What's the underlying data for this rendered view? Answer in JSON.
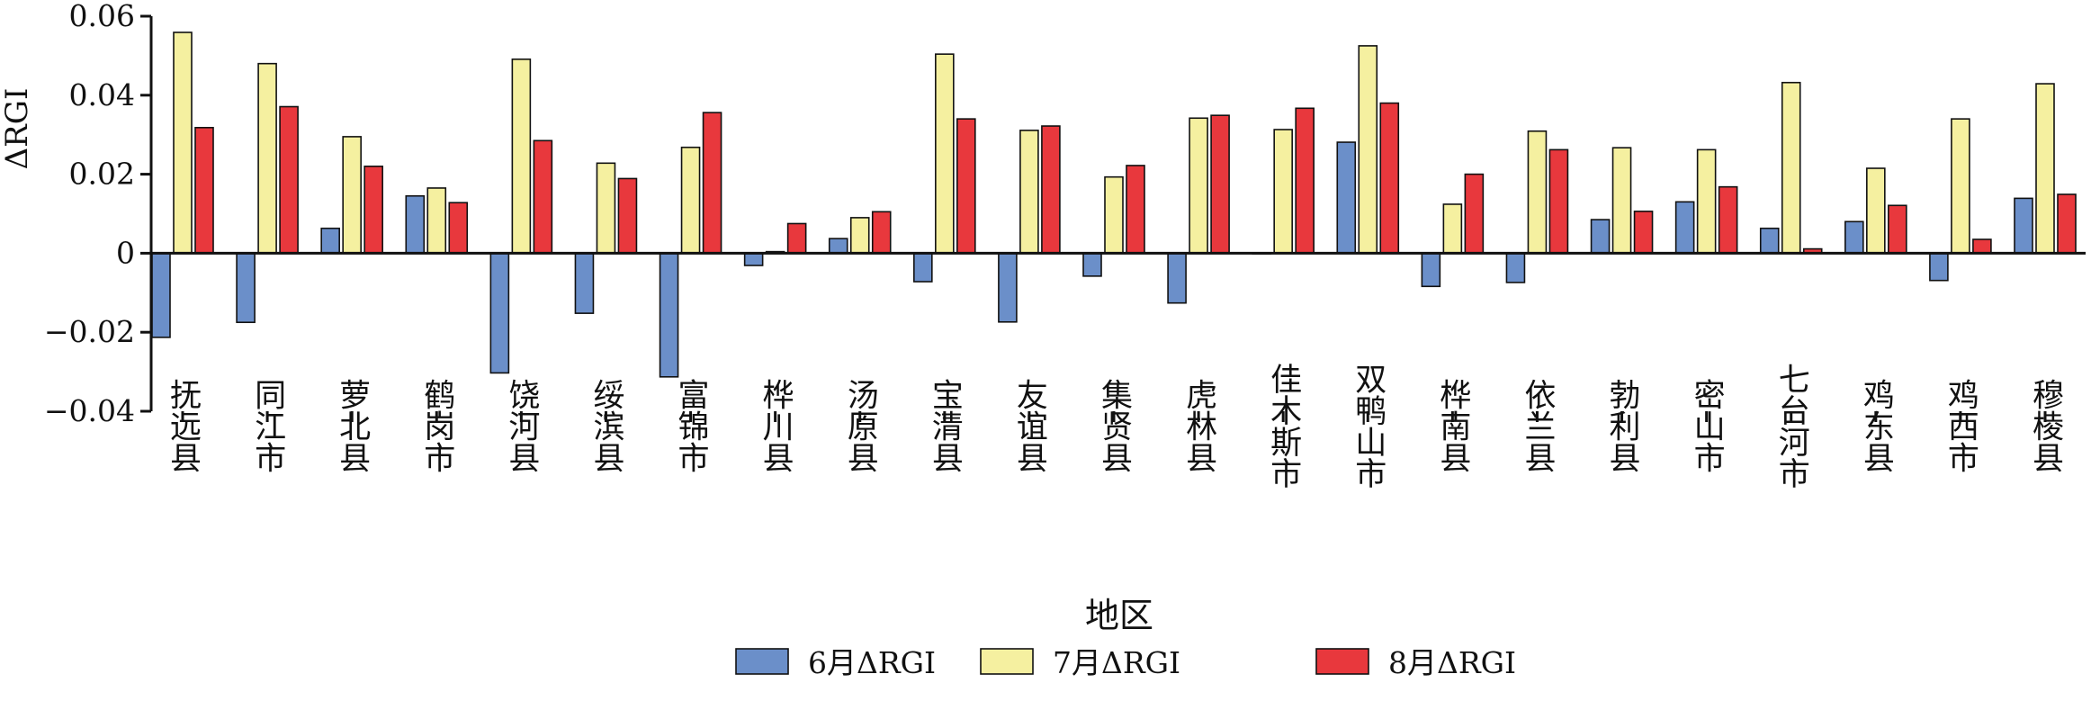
{
  "chart_data": {
    "type": "bar",
    "xlabel": "地区",
    "ylabel": "ΔRGI",
    "ylim": [
      -0.04,
      0.06
    ],
    "yticks": [
      -0.04,
      -0.02,
      0,
      0.02,
      0.04,
      0.06
    ],
    "ytick_labels": [
      "−0.04",
      "−0.02",
      "0",
      "0.02",
      "0.04",
      "0.06"
    ],
    "legend_position": "bottom",
    "categories": [
      "抚远县",
      "同江市",
      "萝北县",
      "鹤岗市",
      "饶河县",
      "绥滨县",
      "富锦市",
      "桦川县",
      "汤原县",
      "宝清县",
      "友谊县",
      "集贤县",
      "虎林县",
      "佳木斯市",
      "双鸭山市",
      "桦南县",
      "依兰县",
      "勃利县",
      "密山市",
      "七台河市",
      "鸡东县",
      "鸡西市",
      "穆棱县"
    ],
    "series": [
      {
        "name": "6月ΔRGI",
        "color": "#6b8fc9",
        "values": [
          -0.0213,
          -0.0175,
          0.0063,
          0.0145,
          -0.0303,
          -0.0152,
          -0.0313,
          -0.0031,
          0.0037,
          -0.0072,
          -0.0174,
          -0.0058,
          -0.0126,
          0,
          0.0281,
          -0.0084,
          -0.0074,
          0.0085,
          0.013,
          0.0063,
          0.008,
          -0.0069,
          0.0139
        ]
      },
      {
        "name": "7月ΔRGI",
        "color": "#f5f0a0",
        "values": [
          0.0559,
          0.048,
          0.0295,
          0.0165,
          0.0491,
          0.0228,
          0.0268,
          0.0004,
          0.009,
          0.0504,
          0.0311,
          0.0193,
          0.0342,
          0.0313,
          0.0525,
          0.0124,
          0.0309,
          0.0267,
          0.0262,
          0.0432,
          0.0215,
          0.034,
          0.0429
        ]
      },
      {
        "name": "8月ΔRGI",
        "color": "#e8383d",
        "values": [
          0.0318,
          0.0371,
          0.022,
          0.0128,
          0.0285,
          0.0189,
          0.0356,
          0.0075,
          0.0105,
          0.034,
          0.0322,
          0.0222,
          0.0349,
          0.0367,
          0.038,
          0.02,
          0.0262,
          0.0106,
          0.0168,
          0.0011,
          0.0121,
          0.0035,
          0.0149
        ]
      }
    ]
  }
}
